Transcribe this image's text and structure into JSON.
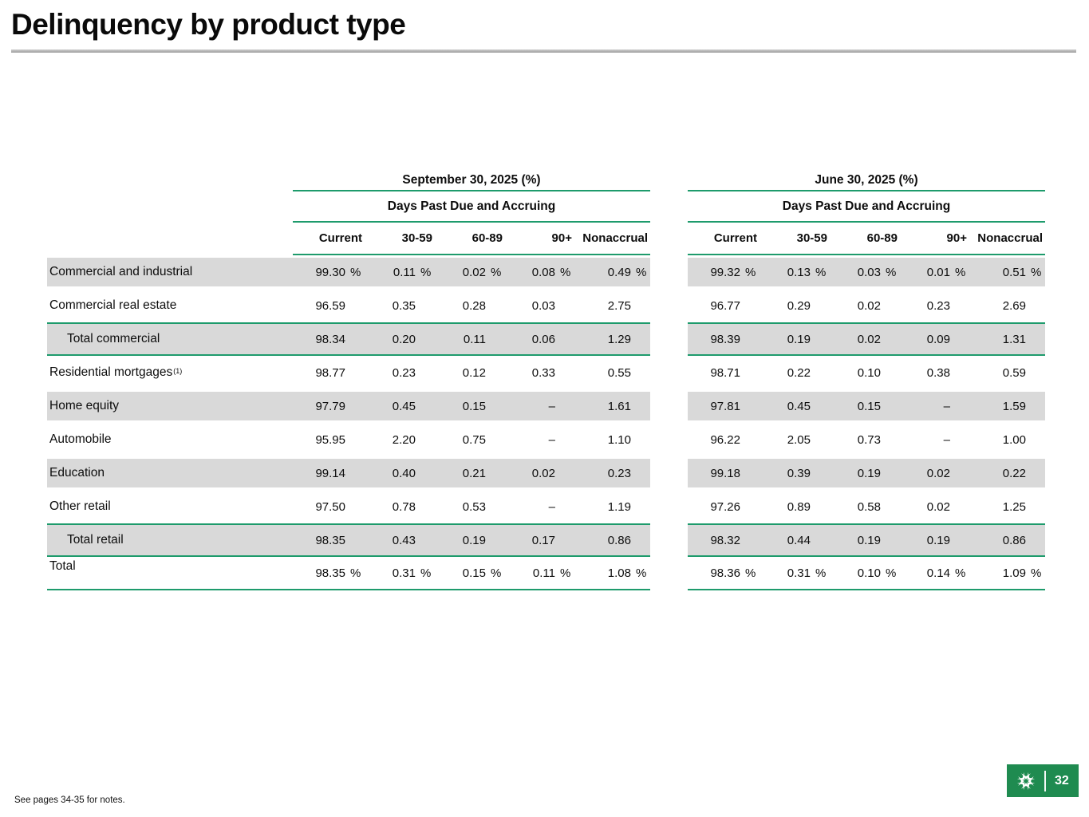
{
  "slide": {
    "title": "Delinquency by product type",
    "footnote": "See pages 34-35 for notes.",
    "page_number": "32"
  },
  "colors": {
    "accent_green_line": "#1e9b6c",
    "row_shade_gray": "#d9d9d9",
    "logo_green": "#1f8b50",
    "title_rule_gray": "#9d9d9d"
  },
  "icons": {
    "logo": "citizens-pinwheel-logo"
  },
  "table": {
    "group_header": "Days Past Due and Accruing",
    "columns": [
      "Current",
      "30-59",
      "60-89",
      "90+",
      "Nonaccrual"
    ],
    "periods": [
      {
        "label": "September 30, 2025 (%)"
      },
      {
        "label": "June 30, 2025 (%)"
      }
    ],
    "rows": [
      {
        "label": "Commercial and industrial",
        "sup": "",
        "indent": false,
        "shaded": true,
        "style": "normal",
        "suffix": "%",
        "sep": [
          "99.30",
          "0.11",
          "0.02",
          "0.08",
          "0.49"
        ],
        "jun": [
          "99.32",
          "0.13",
          "0.03",
          "0.01",
          "0.51"
        ]
      },
      {
        "label": "Commercial real estate",
        "sup": "",
        "indent": false,
        "shaded": false,
        "style": "normal",
        "suffix": "",
        "sep": [
          "96.59",
          "0.35",
          "0.28",
          "0.03",
          "2.75"
        ],
        "jun": [
          "96.77",
          "0.29",
          "0.02",
          "0.23",
          "2.69"
        ]
      },
      {
        "label": "Total commercial",
        "sup": "",
        "indent": true,
        "shaded": true,
        "style": "subtotal",
        "suffix": "",
        "sep": [
          "98.34",
          "0.20",
          "0.11",
          "0.06",
          "1.29"
        ],
        "jun": [
          "98.39",
          "0.19",
          "0.02",
          "0.09",
          "1.31"
        ]
      },
      {
        "label": "Residential mortgages",
        "sup": "(1)",
        "indent": false,
        "shaded": false,
        "style": "normal",
        "suffix": "",
        "sep": [
          "98.77",
          "0.23",
          "0.12",
          "0.33",
          "0.55"
        ],
        "jun": [
          "98.71",
          "0.22",
          "0.10",
          "0.38",
          "0.59"
        ]
      },
      {
        "label": "Home equity",
        "sup": "",
        "indent": false,
        "shaded": true,
        "style": "normal",
        "suffix": "",
        "sep": [
          "97.79",
          "0.45",
          "0.15",
          "–",
          "1.61"
        ],
        "jun": [
          "97.81",
          "0.45",
          "0.15",
          "–",
          "1.59"
        ]
      },
      {
        "label": "Automobile",
        "sup": "",
        "indent": false,
        "shaded": false,
        "style": "normal",
        "suffix": "",
        "sep": [
          "95.95",
          "2.20",
          "0.75",
          "–",
          "1.10"
        ],
        "jun": [
          "96.22",
          "2.05",
          "0.73",
          "–",
          "1.00"
        ]
      },
      {
        "label": "Education",
        "sup": "",
        "indent": false,
        "shaded": true,
        "style": "normal",
        "suffix": "",
        "sep": [
          "99.14",
          "0.40",
          "0.21",
          "0.02",
          "0.23"
        ],
        "jun": [
          "99.18",
          "0.39",
          "0.19",
          "0.02",
          "0.22"
        ]
      },
      {
        "label": "Other retail",
        "sup": "",
        "indent": false,
        "shaded": false,
        "style": "normal",
        "suffix": "",
        "sep": [
          "97.50",
          "0.78",
          "0.53",
          "–",
          "1.19"
        ],
        "jun": [
          "97.26",
          "0.89",
          "0.58",
          "0.02",
          "1.25"
        ]
      },
      {
        "label": "Total retail",
        "sup": "",
        "indent": true,
        "shaded": true,
        "style": "subtotal",
        "suffix": "",
        "sep": [
          "98.35",
          "0.43",
          "0.19",
          "0.17",
          "0.86"
        ],
        "jun": [
          "98.32",
          "0.44",
          "0.19",
          "0.19",
          "0.86"
        ]
      },
      {
        "label": "Total",
        "sup": "",
        "indent": false,
        "shaded": false,
        "style": "grandtotal",
        "suffix": "%",
        "sep": [
          "98.35",
          "0.31",
          "0.15",
          "0.11",
          "1.08"
        ],
        "jun": [
          "98.36",
          "0.31",
          "0.10",
          "0.14",
          "1.09"
        ]
      }
    ]
  }
}
